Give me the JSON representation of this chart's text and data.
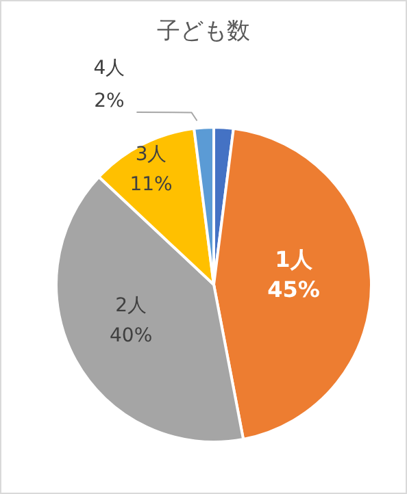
{
  "chart_data": {
    "type": "pie",
    "title": "子ども数",
    "categories": [
      null,
      "1人",
      "2人",
      "3人",
      "4人"
    ],
    "values": [
      2,
      45,
      40,
      11,
      2
    ],
    "colors": [
      "#4472c4",
      "#ed7d31",
      "#a5a5a5",
      "#ffc000",
      "#5b9bd5"
    ],
    "value_labels": [
      null,
      "45%",
      "40%",
      "11%",
      "2%"
    ]
  }
}
